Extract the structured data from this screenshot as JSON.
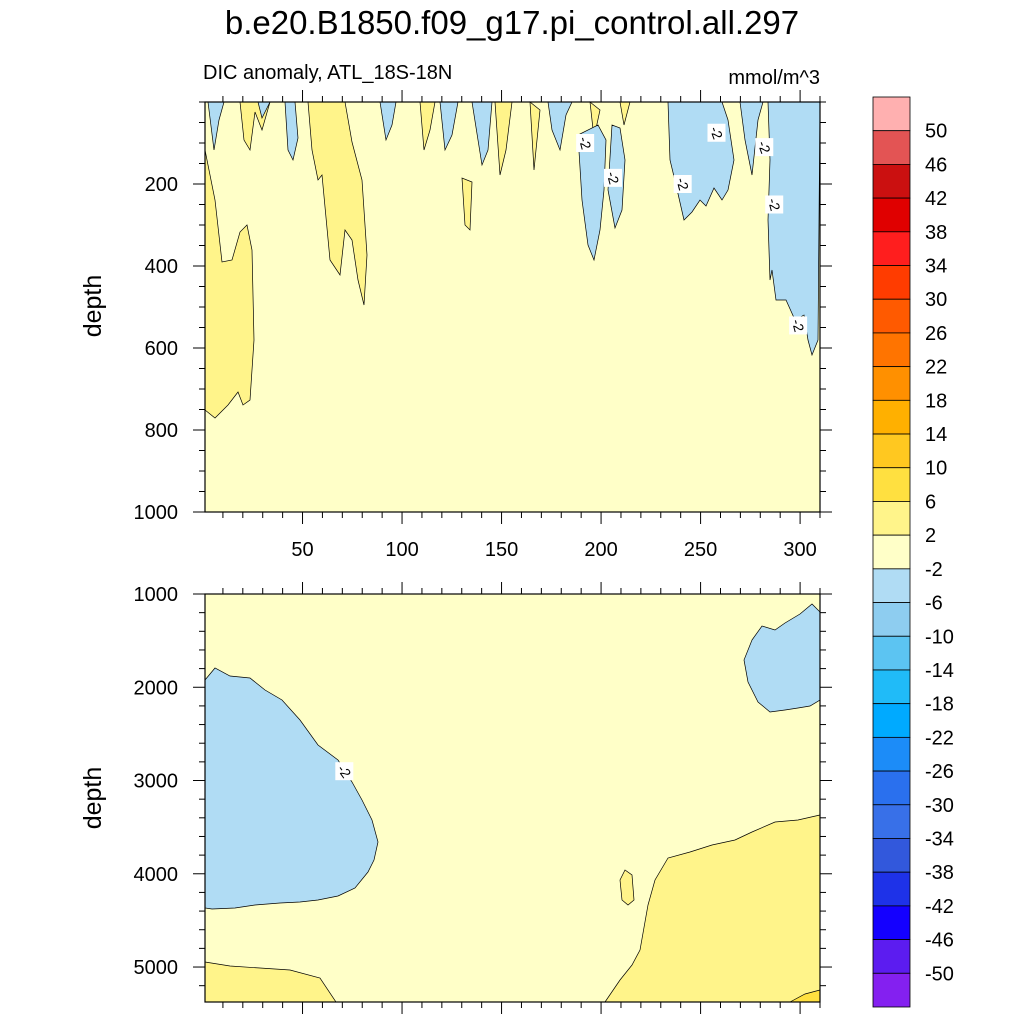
{
  "title": "b.e20.B1850.f09_g17.pi_control.all.297",
  "subtitle": "DIC anomaly, ATL_18S-18N",
  "units": "mmol/m^3",
  "chart_data": [
    {
      "type": "contour",
      "panel": "upper",
      "ylabel": "depth",
      "xlabel": "",
      "xlim": [
        1,
        310
      ],
      "ylim": [
        0,
        1000
      ],
      "y_reversed": true,
      "xticks": [
        50,
        100,
        150,
        200,
        250,
        300
      ],
      "yticks": [
        200,
        400,
        600,
        800,
        1000
      ],
      "contour_labels": [
        {
          "text": "-2",
          "x": 192,
          "y": 100
        },
        {
          "text": "-2",
          "x": 206,
          "y": 185
        },
        {
          "text": "-2",
          "x": 241,
          "y": 200
        },
        {
          "text": "-2",
          "x": 258,
          "y": 75
        },
        {
          "text": "-2",
          "x": 282,
          "y": 110
        },
        {
          "text": "-2",
          "x": 287,
          "y": 250
        },
        {
          "text": "-2",
          "x": 299,
          "y": 545
        }
      ]
    },
    {
      "type": "contour",
      "panel": "lower",
      "ylabel": "depth",
      "xlabel": "",
      "xlim": [
        1,
        310
      ],
      "ylim": [
        1000,
        5375
      ],
      "y_reversed": true,
      "yticks": [
        1000,
        2000,
        3000,
        4000,
        5000
      ],
      "contour_labels": [
        {
          "text": "-2",
          "x": 71,
          "y": 2900
        }
      ]
    }
  ],
  "colorbar": {
    "labels": [
      "50",
      "46",
      "42",
      "38",
      "34",
      "30",
      "26",
      "22",
      "18",
      "14",
      "10",
      "6",
      "2",
      "-2",
      "-6",
      "-10",
      "-14",
      "-18",
      "-22",
      "-26",
      "-30",
      "-34",
      "-38",
      "-42",
      "-46",
      "-50"
    ],
    "colors": [
      "#FFB0B0",
      "#E35454",
      "#CB1010",
      "#E00000",
      "#FF1E1E",
      "#FF3C00",
      "#FF5A00",
      "#FF7400",
      "#FF9000",
      "#FFB000",
      "#FFC820",
      "#FFE040",
      "#FFF48A",
      "#FFFFC8",
      "#B0DCF4",
      "#8ECDF0",
      "#5CC4F2",
      "#20BBF8",
      "#00AAFF",
      "#1C8CF8",
      "#2A70EE",
      "#3870E8",
      "#3258DC",
      "#1E32E8",
      "#1400FF",
      "#5C1CF0",
      "#8420F0"
    ]
  }
}
